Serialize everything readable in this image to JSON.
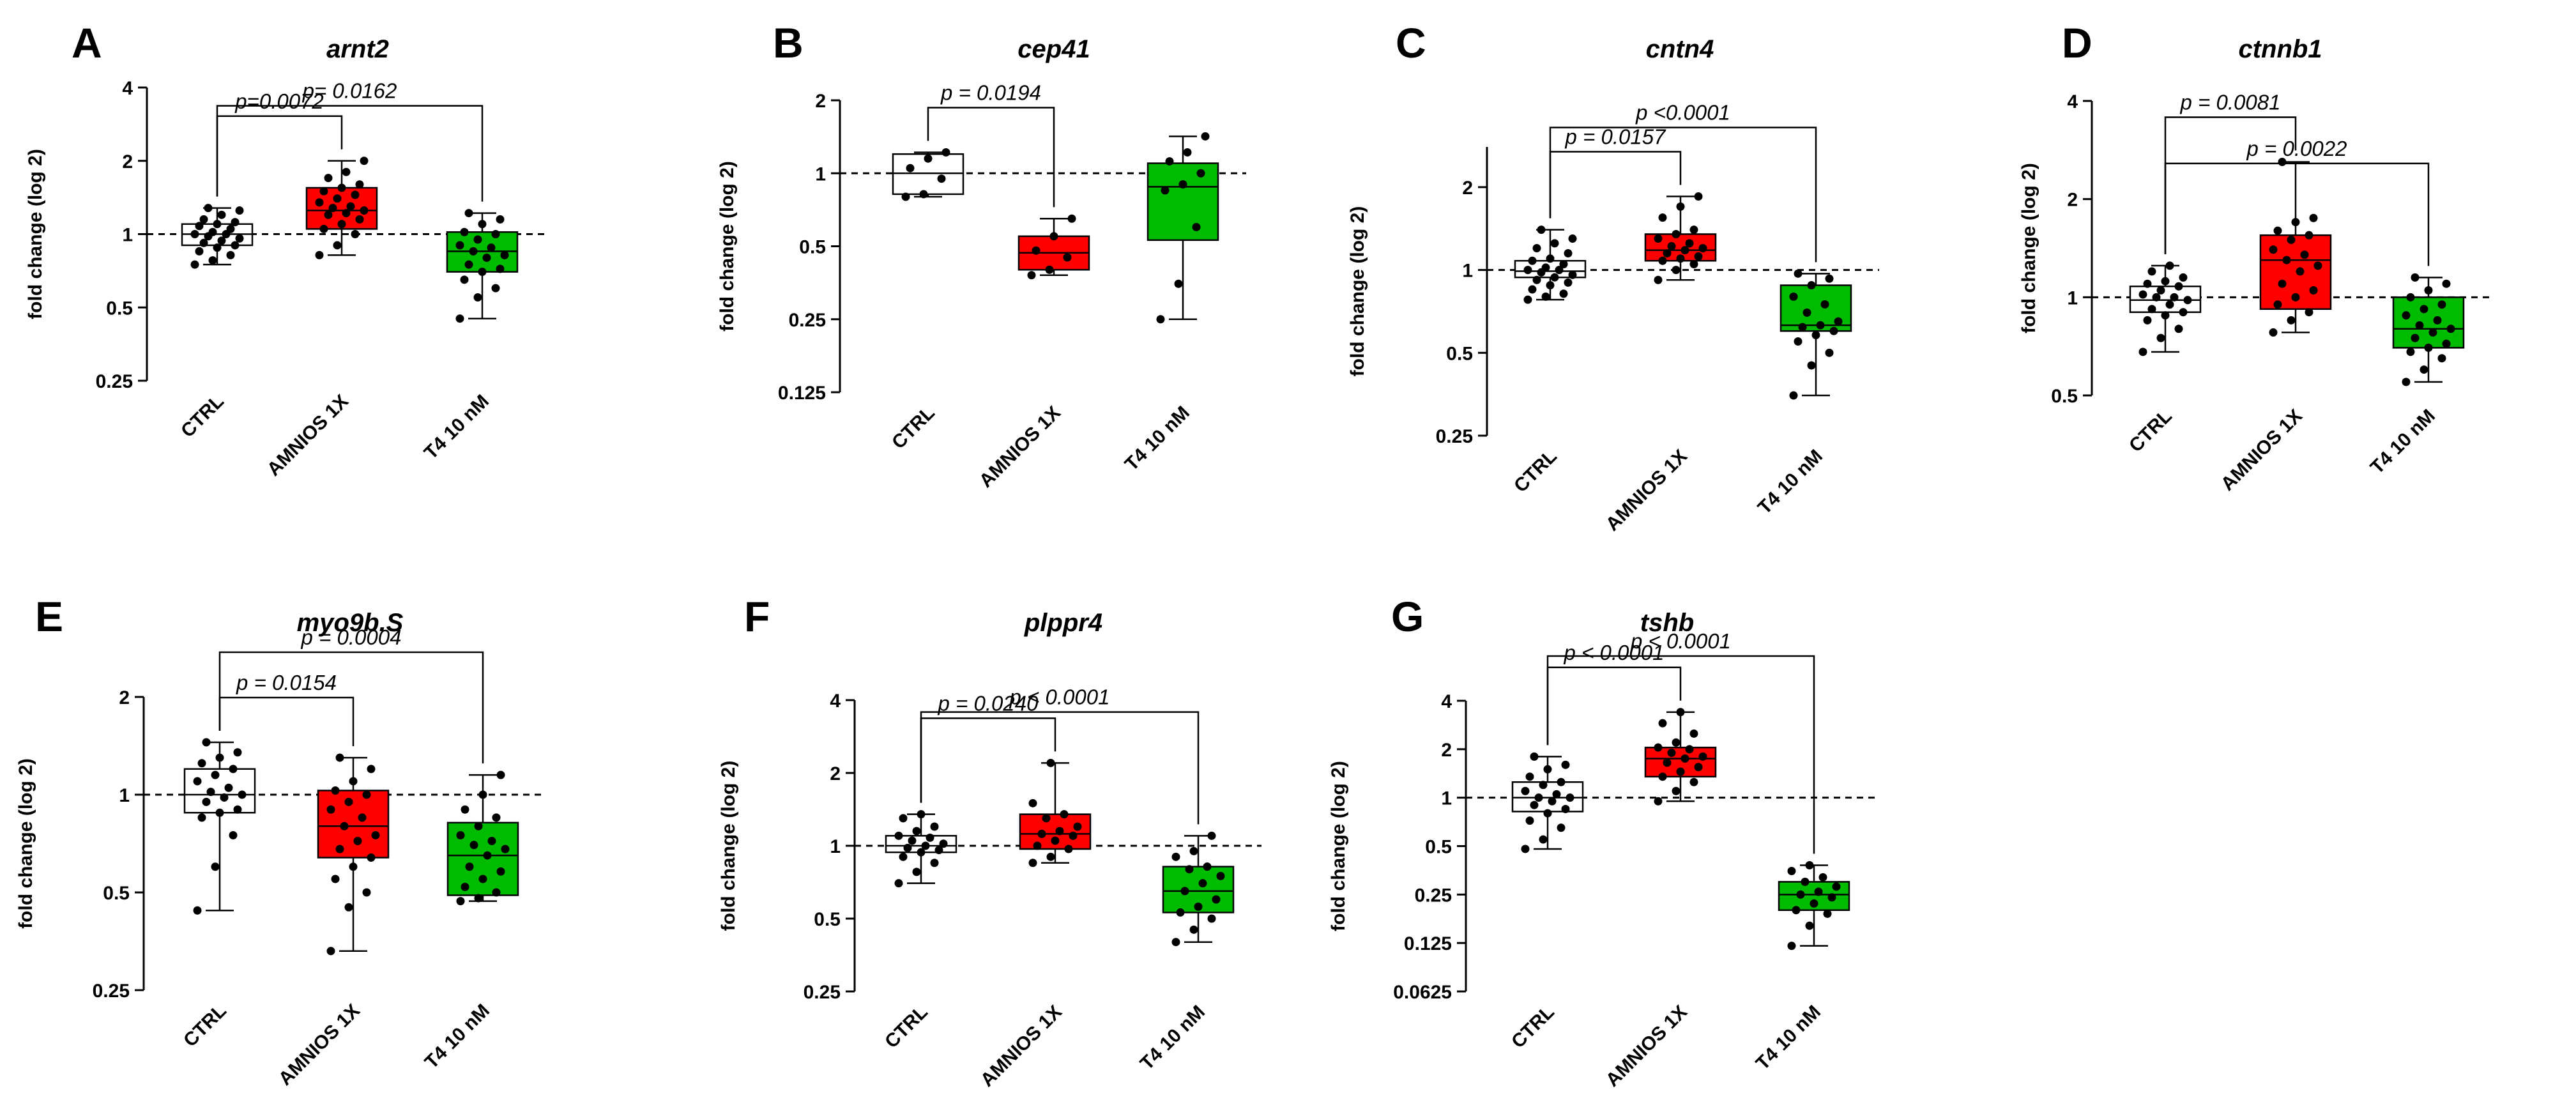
{
  "colors": {
    "ctrl": "#ffffff",
    "amnios": "#ff0000",
    "t4": "#00bb00",
    "outline": "#000000"
  },
  "chart_data": [
    {
      "type": "box",
      "panel": "A",
      "title": "arnt2",
      "ylabel": "fold change (log 2)",
      "yscale": "log2",
      "ylim": [
        0.25,
        4
      ],
      "yticks": [
        0.25,
        0.5,
        1,
        2,
        4
      ],
      "ytick_labels": [
        "0.25",
        "0.5",
        "1",
        "2",
        "4"
      ],
      "categories": [
        "CTRL",
        "AMNIOS 1X",
        "T4 10 nM"
      ],
      "boxes": [
        {
          "q1": 0.9,
          "median": 1.0,
          "q3": 1.1,
          "min": 0.75,
          "max": 1.28,
          "points": [
            0.75,
            0.78,
            0.82,
            0.85,
            0.88,
            0.9,
            0.92,
            0.94,
            0.96,
            0.98,
            1.0,
            1.0,
            1.02,
            1.05,
            1.08,
            1.1,
            1.12,
            1.15,
            1.2,
            1.25,
            1.28
          ]
        },
        {
          "q1": 1.05,
          "median": 1.25,
          "q3": 1.55,
          "min": 0.82,
          "max": 2.0,
          "points": [
            0.82,
            0.9,
            1.0,
            1.05,
            1.1,
            1.15,
            1.2,
            1.22,
            1.25,
            1.28,
            1.3,
            1.35,
            1.4,
            1.45,
            1.5,
            1.55,
            1.6,
            1.7,
            1.8,
            2.0
          ]
        },
        {
          "q1": 0.7,
          "median": 0.85,
          "q3": 1.02,
          "min": 0.45,
          "max": 1.22,
          "points": [
            0.45,
            0.55,
            0.6,
            0.65,
            0.7,
            0.72,
            0.75,
            0.8,
            0.82,
            0.85,
            0.88,
            0.9,
            0.95,
            1.0,
            1.02,
            1.1,
            1.15,
            1.22
          ]
        }
      ],
      "annotations": [
        {
          "text": "p=0.0072",
          "from": 0,
          "to": 1
        },
        {
          "text": "p= 0.0162",
          "from": 0,
          "to": 2
        }
      ]
    },
    {
      "type": "box",
      "panel": "B",
      "title": "cep41",
      "ylabel": "fold change (log 2)",
      "yscale": "log2",
      "ylim": [
        0.125,
        2
      ],
      "yticks": [
        0.125,
        0.25,
        0.5,
        1,
        2
      ],
      "ytick_labels": [
        "0.125",
        "0.25",
        "0.5",
        "1",
        "2"
      ],
      "categories": [
        "CTRL",
        "AMNIOS 1X",
        "T4 10 nM"
      ],
      "boxes": [
        {
          "q1": 0.82,
          "median": 1.0,
          "q3": 1.2,
          "min": 0.8,
          "max": 1.22,
          "points": [
            0.8,
            0.82,
            0.95,
            1.05,
            1.15,
            1.22
          ]
        },
        {
          "q1": 0.4,
          "median": 0.47,
          "q3": 0.55,
          "min": 0.38,
          "max": 0.65,
          "points": [
            0.38,
            0.4,
            0.45,
            0.48,
            0.55,
            0.65
          ]
        },
        {
          "q1": 0.53,
          "median": 0.88,
          "q3": 1.1,
          "min": 0.25,
          "max": 1.42,
          "points": [
            0.25,
            0.35,
            0.6,
            0.85,
            0.9,
            1.0,
            1.12,
            1.22,
            1.42
          ]
        }
      ],
      "annotations": [
        {
          "text": "p = 0.0194",
          "from": 0,
          "to": 1
        }
      ]
    },
    {
      "type": "box",
      "panel": "C",
      "title": "cntn4",
      "ylabel": "fold change (log 2)",
      "yscale": "log2",
      "ylim": [
        0.25,
        2.8
      ],
      "yticks": [
        0.25,
        0.5,
        1,
        2
      ],
      "ytick_labels": [
        "0.25",
        "0.5",
        "1",
        "2"
      ],
      "categories": [
        "CTRL",
        "AMNIOS 1X",
        "T4 10 nM"
      ],
      "boxes": [
        {
          "q1": 0.94,
          "median": 0.99,
          "q3": 1.08,
          "min": 0.78,
          "max": 1.4,
          "points": [
            0.78,
            0.8,
            0.82,
            0.85,
            0.88,
            0.9,
            0.92,
            0.94,
            0.96,
            0.98,
            1.0,
            1.0,
            1.02,
            1.05,
            1.08,
            1.1,
            1.15,
            1.2,
            1.25,
            1.3,
            1.4
          ]
        },
        {
          "q1": 1.08,
          "median": 1.18,
          "q3": 1.35,
          "min": 0.92,
          "max": 1.85,
          "points": [
            0.92,
            1.0,
            1.05,
            1.08,
            1.1,
            1.12,
            1.15,
            1.18,
            1.2,
            1.22,
            1.25,
            1.3,
            1.35,
            1.4,
            1.55,
            1.7,
            1.85
          ]
        },
        {
          "q1": 0.6,
          "median": 0.63,
          "q3": 0.88,
          "min": 0.35,
          "max": 0.97,
          "points": [
            0.35,
            0.45,
            0.5,
            0.55,
            0.58,
            0.6,
            0.62,
            0.63,
            0.65,
            0.7,
            0.75,
            0.8,
            0.88,
            0.93,
            0.97
          ]
        }
      ],
      "annotations": [
        {
          "text": "p = 0.0157",
          "from": 0,
          "to": 1
        },
        {
          "text": "p <0.0001",
          "from": 0,
          "to": 2
        }
      ]
    },
    {
      "type": "box",
      "panel": "D",
      "title": "ctnnb1",
      "ylabel": "fold change (log 2)",
      "yscale": "log2",
      "ylim": [
        0.5,
        4
      ],
      "yticks": [
        0.5,
        1,
        2,
        4
      ],
      "ytick_labels": [
        "0.5",
        "1",
        "2",
        "4"
      ],
      "categories": [
        "CTRL",
        "AMNIOS 1X",
        "T4 10 nM"
      ],
      "boxes": [
        {
          "q1": 0.9,
          "median": 0.98,
          "q3": 1.08,
          "min": 0.68,
          "max": 1.25,
          "points": [
            0.68,
            0.75,
            0.8,
            0.85,
            0.88,
            0.9,
            0.92,
            0.95,
            0.98,
            1.0,
            1.0,
            1.02,
            1.05,
            1.08,
            1.1,
            1.12,
            1.15,
            1.2,
            1.25
          ]
        },
        {
          "q1": 0.92,
          "median": 1.3,
          "q3": 1.55,
          "min": 0.78,
          "max": 2.6,
          "points": [
            0.78,
            0.85,
            0.9,
            0.95,
            1.0,
            1.05,
            1.1,
            1.2,
            1.25,
            1.3,
            1.35,
            1.4,
            1.5,
            1.55,
            1.6,
            1.7,
            1.75,
            2.6
          ]
        },
        {
          "q1": 0.7,
          "median": 0.8,
          "q3": 1.0,
          "min": 0.55,
          "max": 1.15,
          "points": [
            0.55,
            0.6,
            0.65,
            0.68,
            0.7,
            0.72,
            0.75,
            0.78,
            0.8,
            0.82,
            0.85,
            0.88,
            0.92,
            0.95,
            1.0,
            1.05,
            1.1,
            1.15
          ]
        }
      ],
      "annotations": [
        {
          "text": "p = 0.0081",
          "from": 0,
          "to": 1
        },
        {
          "text": "p = 0.0022",
          "from": 0,
          "to": 2
        }
      ]
    },
    {
      "type": "box",
      "panel": "E",
      "title": "myo9b.S",
      "ylabel": "fold change (log 2)",
      "yscale": "log2",
      "ylim": [
        0.25,
        2
      ],
      "yticks": [
        0.25,
        0.5,
        1,
        2
      ],
      "ytick_labels": [
        "0.25",
        "0.5",
        "1",
        "2"
      ],
      "categories": [
        "CTRL",
        "AMNIOS 1X",
        "T4 10 nM"
      ],
      "boxes": [
        {
          "q1": 0.88,
          "median": 1.0,
          "q3": 1.2,
          "min": 0.44,
          "max": 1.45,
          "points": [
            0.44,
            0.6,
            0.75,
            0.85,
            0.88,
            0.9,
            0.95,
            0.98,
            1.0,
            1.02,
            1.05,
            1.1,
            1.15,
            1.2,
            1.25,
            1.3,
            1.35,
            1.45
          ]
        },
        {
          "q1": 0.64,
          "median": 0.8,
          "q3": 1.03,
          "min": 0.33,
          "max": 1.3,
          "points": [
            0.33,
            0.45,
            0.5,
            0.55,
            0.6,
            0.64,
            0.68,
            0.72,
            0.75,
            0.8,
            0.85,
            0.9,
            0.95,
            1.0,
            1.03,
            1.1,
            1.2,
            1.3
          ]
        },
        {
          "q1": 0.49,
          "median": 0.65,
          "q3": 0.82,
          "min": 0.47,
          "max": 1.15,
          "points": [
            0.47,
            0.48,
            0.5,
            0.52,
            0.55,
            0.58,
            0.6,
            0.65,
            0.68,
            0.7,
            0.72,
            0.75,
            0.8,
            0.85,
            0.9,
            1.0,
            1.15
          ]
        }
      ],
      "annotations": [
        {
          "text": "p = 0.0154",
          "from": 0,
          "to": 1
        },
        {
          "text": "p = 0.0004",
          "from": 0,
          "to": 2
        }
      ]
    },
    {
      "type": "box",
      "panel": "F",
      "title": "plppr4",
      "ylabel": "fold change (log 2)",
      "yscale": "log2",
      "ylim": [
        0.25,
        4
      ],
      "yticks": [
        0.25,
        0.5,
        1,
        2,
        4
      ],
      "ytick_labels": [
        "0.25",
        "0.5",
        "1",
        "2",
        "4"
      ],
      "categories": [
        "CTRL",
        "AMNIOS 1X",
        "T4 10 nM"
      ],
      "boxes": [
        {
          "q1": 0.94,
          "median": 1.0,
          "q3": 1.1,
          "min": 0.7,
          "max": 1.35,
          "points": [
            0.7,
            0.78,
            0.85,
            0.9,
            0.94,
            0.96,
            0.98,
            1.0,
            1.02,
            1.05,
            1.08,
            1.1,
            1.15,
            1.2,
            1.3,
            1.35
          ]
        },
        {
          "q1": 0.97,
          "median": 1.12,
          "q3": 1.35,
          "min": 0.85,
          "max": 2.2,
          "points": [
            0.85,
            0.9,
            0.97,
            1.0,
            1.05,
            1.1,
            1.12,
            1.15,
            1.2,
            1.3,
            1.35,
            1.5,
            2.2
          ]
        },
        {
          "q1": 0.53,
          "median": 0.65,
          "q3": 0.82,
          "min": 0.4,
          "max": 1.1,
          "points": [
            0.4,
            0.45,
            0.5,
            0.53,
            0.56,
            0.6,
            0.65,
            0.7,
            0.75,
            0.8,
            0.82,
            0.9,
            0.95,
            1.1
          ]
        }
      ],
      "annotations": [
        {
          "text": "p = 0.0240",
          "from": 0,
          "to": 1
        },
        {
          "text": "p < 0.0001",
          "from": 0,
          "to": 2
        }
      ]
    },
    {
      "type": "box",
      "panel": "G",
      "title": "tshb",
      "ylabel": "fold change (log 2)",
      "yscale": "log2",
      "ylim": [
        0.0625,
        4
      ],
      "yticks": [
        0.0625,
        0.125,
        0.25,
        0.5,
        1,
        2,
        4
      ],
      "ytick_labels": [
        "0.0625",
        "0.125",
        "0.25",
        "0.5",
        "1",
        "2",
        "4"
      ],
      "categories": [
        "CTRL",
        "AMNIOS 1X",
        "T4 10 nM"
      ],
      "boxes": [
        {
          "q1": 0.82,
          "median": 1.0,
          "q3": 1.25,
          "min": 0.48,
          "max": 1.8,
          "points": [
            0.48,
            0.55,
            0.65,
            0.72,
            0.8,
            0.85,
            0.9,
            0.95,
            1.0,
            1.0,
            1.05,
            1.1,
            1.2,
            1.25,
            1.35,
            1.5,
            1.6,
            1.8
          ]
        },
        {
          "q1": 1.35,
          "median": 1.75,
          "q3": 2.05,
          "min": 0.95,
          "max": 3.4,
          "points": [
            0.95,
            1.1,
            1.25,
            1.35,
            1.45,
            1.55,
            1.65,
            1.75,
            1.8,
            1.9,
            2.0,
            2.05,
            2.2,
            2.5,
            2.9,
            3.4
          ]
        },
        {
          "q1": 0.2,
          "median": 0.25,
          "q3": 0.3,
          "min": 0.12,
          "max": 0.38,
          "points": [
            0.12,
            0.16,
            0.19,
            0.2,
            0.22,
            0.24,
            0.25,
            0.26,
            0.28,
            0.3,
            0.32,
            0.35,
            0.38
          ]
        }
      ],
      "annotations": [
        {
          "text": "p < 0.0001",
          "from": 0,
          "to": 1
        },
        {
          "text": "p < 0.0001",
          "from": 0,
          "to": 2
        }
      ]
    }
  ]
}
